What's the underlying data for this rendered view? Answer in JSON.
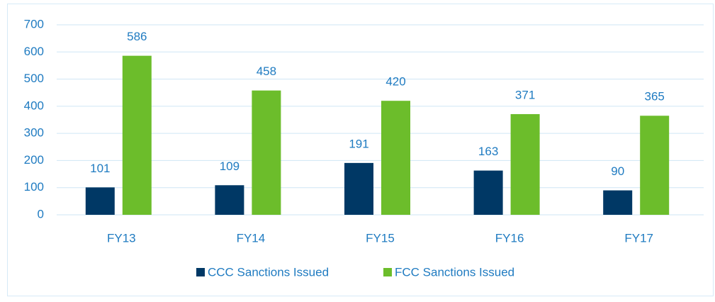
{
  "chart_data": {
    "type": "bar",
    "categories": [
      "FY13",
      "FY14",
      "FY15",
      "FY16",
      "FY17"
    ],
    "series": [
      {
        "name": "CCC Sanctions Issued",
        "color": "#003865",
        "values": [
          101,
          109,
          191,
          163,
          90
        ]
      },
      {
        "name": "FCC Sanctions Issued",
        "color": "#6cbd2b",
        "values": [
          586,
          458,
          420,
          371,
          365
        ]
      }
    ],
    "ylim": [
      0,
      700
    ],
    "yticks": [
      0,
      100,
      200,
      300,
      400,
      500,
      600,
      700
    ],
    "grid": true,
    "legend": "bottom"
  }
}
